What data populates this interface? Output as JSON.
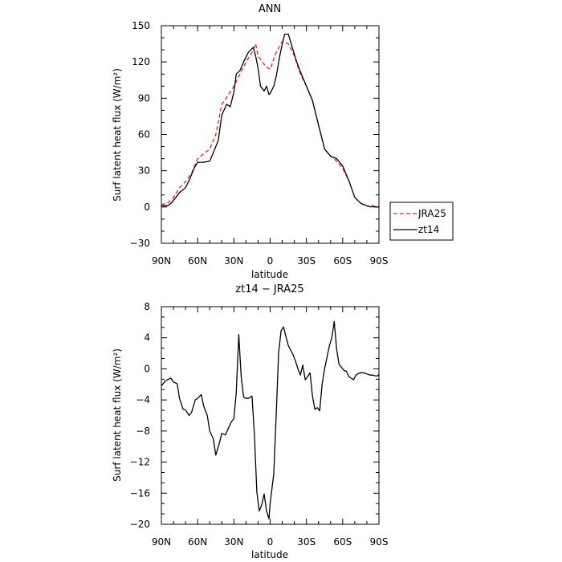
{
  "chart_data": [
    {
      "type": "line",
      "title": "ANN",
      "xlabel": "latitude",
      "ylabel": "Surf latent heat flux (W/m²)",
      "xlim": [
        -90,
        90
      ],
      "ylim": [
        -30,
        150
      ],
      "xticks": [
        -90,
        -60,
        -30,
        0,
        30,
        60,
        90
      ],
      "xtick_labels": [
        "90N",
        "60N",
        "30N",
        "0",
        "30S",
        "60S",
        "90S"
      ],
      "yticks": [
        -30,
        0,
        30,
        60,
        90,
        120,
        150
      ],
      "ytick_labels": [
        "−30",
        "0",
        "30",
        "60",
        "90",
        "120",
        "150"
      ],
      "legend": "right",
      "series": [
        {
          "name": "JRA25",
          "color": "#e8221c",
          "style": "dashed",
          "x": [
            -90,
            -85,
            -80,
            -75,
            -70,
            -65,
            -60,
            -55,
            -50,
            -45,
            -40,
            -35,
            -30,
            -25,
            -20,
            -15,
            -12,
            -10,
            -5,
            -2,
            0,
            5,
            10,
            15,
            20,
            25,
            30,
            35,
            40,
            45,
            50,
            55,
            60,
            65,
            70,
            75,
            80,
            85,
            90
          ],
          "y": [
            2,
            3,
            8,
            16,
            21,
            28,
            40,
            44,
            48,
            60,
            85,
            92,
            100,
            110,
            120,
            128,
            135,
            125,
            118,
            115,
            114,
            128,
            137,
            135,
            125,
            110,
            100,
            88,
            68,
            48,
            42,
            38,
            32,
            22,
            8,
            3,
            1,
            0,
            1
          ]
        },
        {
          "name": "zt14",
          "color": "#000000",
          "style": "solid",
          "x": [
            -90,
            -85,
            -82,
            -78,
            -75,
            -70,
            -67,
            -63,
            -60,
            -55,
            -50,
            -47,
            -43,
            -40,
            -36,
            -33,
            -30,
            -28,
            -25,
            -22,
            -18,
            -14,
            -12,
            -10,
            -8,
            -5,
            -3,
            -1,
            0,
            3,
            5,
            8,
            10,
            12,
            15,
            18,
            22,
            25,
            30,
            35,
            40,
            45,
            50,
            55,
            60,
            65,
            70,
            75,
            80,
            83,
            85,
            87,
            90
          ],
          "y": [
            1,
            1,
            3,
            8,
            12,
            16,
            22,
            32,
            37,
            37,
            38,
            45,
            55,
            76,
            85,
            83,
            95,
            110,
            113,
            120,
            128,
            132,
            125,
            115,
            100,
            96,
            100,
            93,
            94,
            100,
            108,
            125,
            135,
            143,
            143,
            133,
            120,
            112,
            100,
            88,
            68,
            48,
            42,
            40,
            34,
            22,
            8,
            3,
            1,
            0,
            1,
            0,
            0
          ]
        }
      ]
    },
    {
      "type": "line",
      "title": "zt14 − JRA25",
      "xlabel": "latitude",
      "ylabel": "Surf latent heat flux (W/m²)",
      "xlim": [
        -90,
        90
      ],
      "ylim": [
        -20,
        8
      ],
      "xticks": [
        -90,
        -60,
        -30,
        0,
        30,
        60,
        90
      ],
      "xtick_labels": [
        "90N",
        "60N",
        "30N",
        "0",
        "30S",
        "60S",
        "90S"
      ],
      "yticks": [
        -20,
        -16,
        -12,
        -8,
        -4,
        0,
        4,
        8
      ],
      "ytick_labels": [
        "−20",
        "−16",
        "−12",
        "−8",
        "−4",
        "0",
        "4",
        "8"
      ],
      "series": [
        {
          "color": "#000000",
          "style": "solid",
          "x": [
            -90,
            -87,
            -85,
            -82,
            -80,
            -77,
            -75,
            -72,
            -70,
            -67,
            -65,
            -62,
            -60,
            -57,
            -55,
            -52,
            -50,
            -47,
            -45,
            -42,
            -40,
            -37,
            -35,
            -32,
            -30,
            -28,
            -26,
            -24,
            -22,
            -20,
            -18,
            -15,
            -13,
            -11,
            -9,
            -7,
            -5,
            -3,
            -1,
            0,
            3,
            5,
            7,
            9,
            11,
            13,
            15,
            17,
            19,
            21,
            23,
            25,
            27,
            29,
            31,
            33,
            35,
            37,
            39,
            41,
            43,
            45,
            47,
            49,
            51,
            53,
            55,
            57,
            59,
            61,
            63,
            65,
            67,
            69,
            71,
            73,
            75,
            77,
            79,
            81,
            83,
            85,
            87,
            89,
            90
          ],
          "y": [
            -2.2,
            -1.6,
            -1.4,
            -1.2,
            -1.7,
            -1.9,
            -3.8,
            -5.2,
            -5.3,
            -6.0,
            -5.6,
            -4.0,
            -3.8,
            -3.3,
            -4.8,
            -6.0,
            -8.0,
            -9.0,
            -11.1,
            -9.5,
            -8.3,
            -8.5,
            -7.8,
            -6.8,
            -6.4,
            -3.0,
            4.4,
            -1.0,
            -3.6,
            -3.8,
            -3.8,
            -3.5,
            -8.5,
            -15.8,
            -18.3,
            -17.5,
            -16.1,
            -18.3,
            -19.3,
            -17.3,
            -13.5,
            -6.0,
            2.0,
            4.9,
            5.4,
            4.2,
            3.0,
            2.4,
            1.8,
            1.0,
            0.0,
            -0.8,
            0.5,
            -1.4,
            -1.0,
            -0.5,
            -3.5,
            -5.2,
            -5.0,
            -5.4,
            -2.0,
            0.0,
            1.5,
            3.0,
            4.0,
            6.1,
            2.5,
            0.6,
            0.2,
            -0.2,
            -0.3,
            -1.0,
            -1.2,
            -1.4,
            -0.8,
            -0.6,
            -0.5,
            -0.5,
            -0.6,
            -0.7,
            -0.8,
            -0.8,
            -0.9,
            -0.9,
            -0.7
          ]
        }
      ]
    }
  ]
}
